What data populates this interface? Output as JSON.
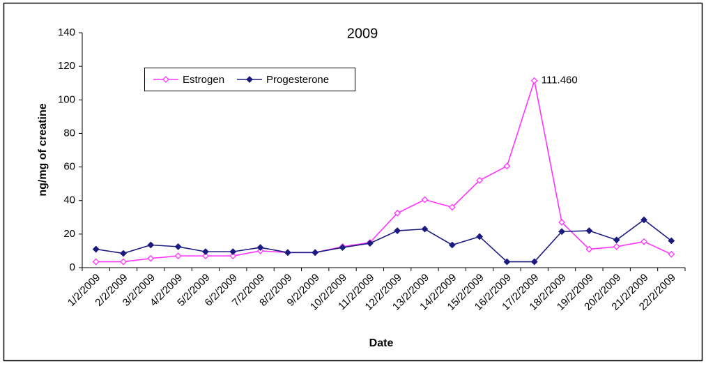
{
  "chart_data": {
    "type": "line",
    "title": "2009",
    "x_label": "Date",
    "y_label": "ng/mg of creatine",
    "categories": [
      "1/2/2009",
      "2/2/2009",
      "3/2/2009",
      "4/2/2009",
      "5/2/2009",
      "6/2/2009",
      "7/2/2009",
      "8/2/2009",
      "9/2/2009",
      "10/2/2009",
      "11/2/2009",
      "12/2/2009",
      "13/2/2009",
      "14/2/2009",
      "15/2/2009",
      "16/2/2009",
      "17/2/2009",
      "18/2/2009",
      "19/2/2009",
      "20/2/2009",
      "21/2/2009",
      "22/2/2009"
    ],
    "series": [
      {
        "name": "Estrogen",
        "color": "#ff33ff",
        "values": [
          3.5,
          3.5,
          5.5,
          7,
          7,
          7,
          10,
          9,
          9,
          12.5,
          15,
          32.5,
          40.5,
          36,
          52,
          60.5,
          111.46,
          27,
          11,
          12.5,
          15.5,
          8
        ],
        "value_labels": [
          null,
          null,
          null,
          null,
          null,
          null,
          null,
          null,
          null,
          null,
          null,
          null,
          null,
          null,
          null,
          null,
          "111.460",
          null,
          null,
          null,
          null,
          null
        ]
      },
      {
        "name": "Progesterone",
        "color": "#1a1a80",
        "values": [
          11,
          8.5,
          13.5,
          12.5,
          9.5,
          9.5,
          12,
          9,
          9,
          12,
          14.5,
          22,
          23,
          13.5,
          18.5,
          3.5,
          3.5,
          21.5,
          22,
          16.5,
          28.5,
          16
        ]
      }
    ],
    "ylim": [
      0,
      140
    ],
    "yticks": [
      0,
      20,
      40,
      60,
      80,
      100,
      120,
      140
    ],
    "grid": false,
    "legend": "top-left"
  }
}
